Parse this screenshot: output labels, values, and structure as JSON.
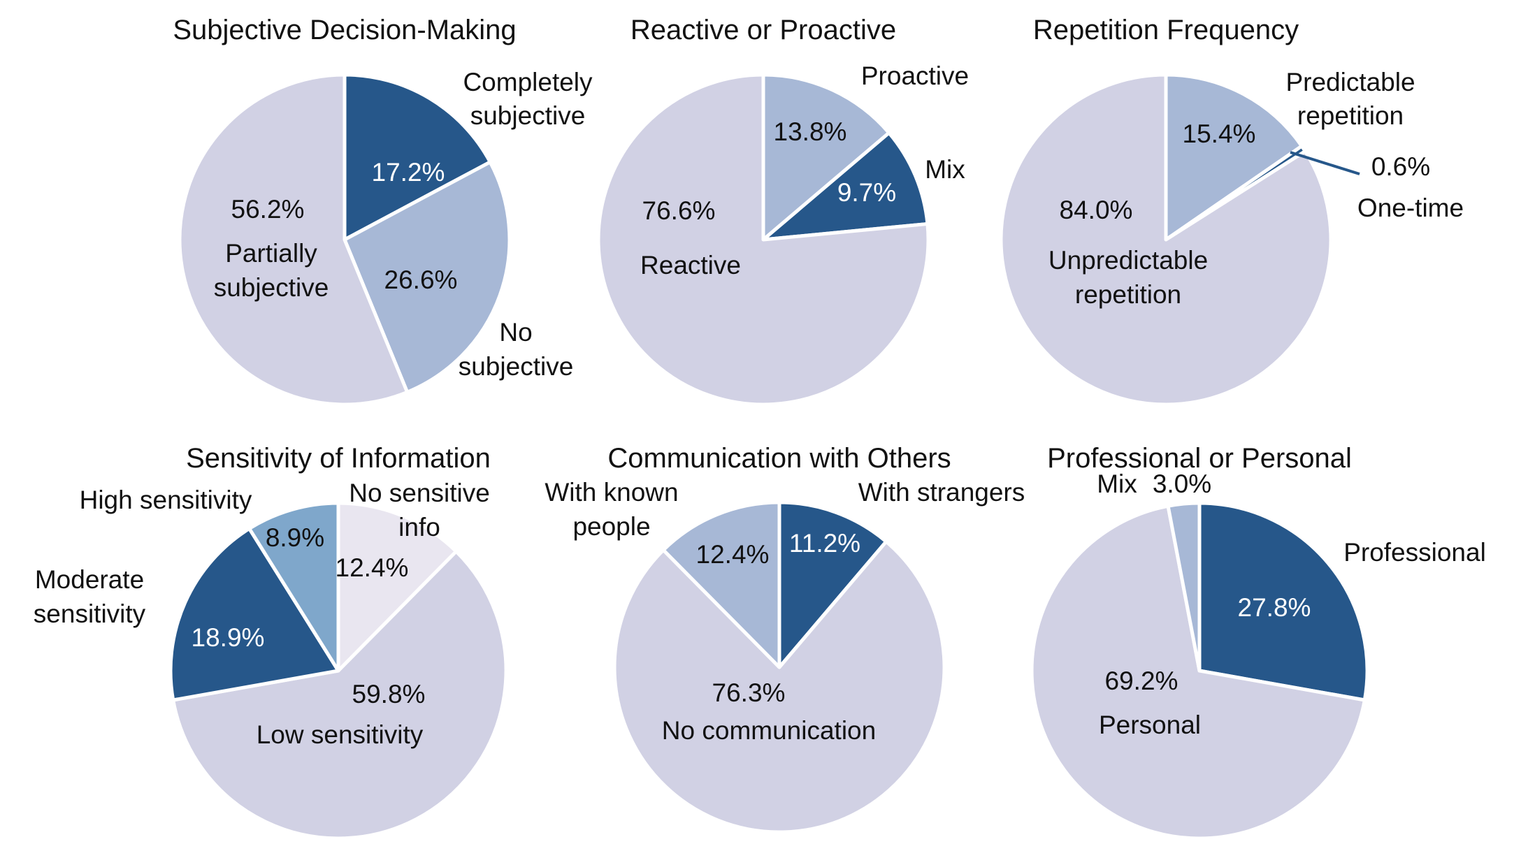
{
  "colors": {
    "dark": "#26578a",
    "mid": "#a7b8d6",
    "steel": "#7fa7cb",
    "lavender": "#d1d1e4",
    "pale": "#e9e6f0",
    "edge": "#ffffff",
    "leader": "#26578a"
  },
  "chart_data": [
    {
      "type": "pie",
      "title": "Subjective Decision-Making",
      "slices": [
        {
          "label": "Completely subjective",
          "value": 17.2,
          "pct_text": "17.2%",
          "color": "dark"
        },
        {
          "label": "No subjective",
          "value": 26.6,
          "pct_text": "26.6%",
          "color": "mid"
        },
        {
          "label": "Partially subjective",
          "value": 56.2,
          "pct_text": "56.2%",
          "color": "lavender"
        }
      ]
    },
    {
      "type": "pie",
      "title": "Reactive or Proactive",
      "slices": [
        {
          "label": "Proactive",
          "value": 13.8,
          "pct_text": "13.8%",
          "color": "mid"
        },
        {
          "label": "Mix",
          "value": 9.7,
          "pct_text": "9.7%",
          "color": "dark"
        },
        {
          "label": "Reactive",
          "value": 76.6,
          "pct_text": "76.6%",
          "color": "lavender"
        }
      ]
    },
    {
      "type": "pie",
      "title": "Repetition Frequency",
      "slices": [
        {
          "label": "Predictable repetition",
          "value": 15.4,
          "pct_text": "15.4%",
          "color": "mid"
        },
        {
          "label": "One-time",
          "value": 0.6,
          "pct_text": "0.6%",
          "color": "dark"
        },
        {
          "label": "Unpredictable repetition",
          "value": 84.0,
          "pct_text": "84.0%",
          "color": "lavender"
        }
      ]
    },
    {
      "type": "pie",
      "title": "Sensitivity of Information",
      "slices": [
        {
          "label": "No sensitive info",
          "value": 12.4,
          "pct_text": "12.4%",
          "color": "pale"
        },
        {
          "label": "Low sensitivity",
          "value": 59.8,
          "pct_text": "59.8%",
          "color": "lavender"
        },
        {
          "label": "Moderate sensitivity",
          "value": 18.9,
          "pct_text": "18.9%",
          "color": "dark"
        },
        {
          "label": "High sensitivity",
          "value": 8.9,
          "pct_text": "8.9%",
          "color": "steel"
        }
      ]
    },
    {
      "type": "pie",
      "title": "Communication with Others",
      "slices": [
        {
          "label": "With strangers",
          "value": 11.2,
          "pct_text": "11.2%",
          "color": "dark"
        },
        {
          "label": "No communication",
          "value": 76.3,
          "pct_text": "76.3%",
          "color": "lavender"
        },
        {
          "label": "With known people",
          "value": 12.4,
          "pct_text": "12.4%",
          "color": "mid"
        }
      ]
    },
    {
      "type": "pie",
      "title": "Professional or Personal",
      "slices": [
        {
          "label": "Professional",
          "value": 27.8,
          "pct_text": "27.8%",
          "color": "dark"
        },
        {
          "label": "Personal",
          "value": 69.2,
          "pct_text": "69.2%",
          "color": "lavender"
        },
        {
          "label": "Mix",
          "value": 3.0,
          "pct_text": "3.0%",
          "color": "mid"
        }
      ]
    }
  ]
}
